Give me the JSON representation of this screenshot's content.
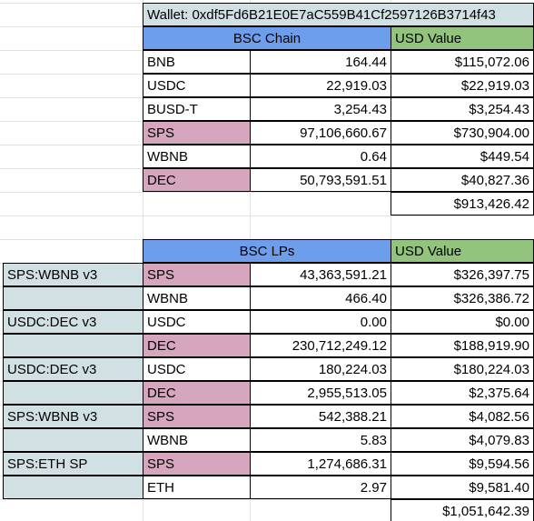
{
  "wallet_label": "Wallet: 0xdf5Fd6B21E0E7aC559B41Cf2597126B3714f43",
  "bsc_chain": {
    "header": "BSC Chain",
    "value_header": "USD Value",
    "rows": [
      {
        "token": "BNB",
        "amount": "164.44",
        "usd": "$115,072.06"
      },
      {
        "token": "USDC",
        "amount": "22,919.03",
        "usd": "$22,919.03"
      },
      {
        "token": "BUSD-T",
        "amount": "3,254.43",
        "usd": "$3,254.43"
      },
      {
        "token": "SPS",
        "amount": "97,106,660.67",
        "usd": "$730,904.00",
        "highlight": true
      },
      {
        "token": "WBNB",
        "amount": "0.64",
        "usd": "$449.54"
      },
      {
        "token": "DEC",
        "amount": "50,793,591.51",
        "usd": "$40,827.36",
        "highlight": true
      }
    ],
    "total": "$913,426.42"
  },
  "bsc_lps": {
    "header": "BSC LPs",
    "value_header": "USD Value",
    "rows": [
      {
        "pool": "SPS:WBNB v3",
        "token": "SPS",
        "amount": "43,363,591.21",
        "usd": "$326,397.75",
        "highlight": true
      },
      {
        "pool": "",
        "token": "WBNB",
        "amount": "466.40",
        "usd": "$326,386.72"
      },
      {
        "pool": "USDC:DEC v3",
        "token": "USDC",
        "amount": "0.00",
        "usd": "$0.00"
      },
      {
        "pool": "",
        "token": "DEC",
        "amount": "230,712,249.12",
        "usd": "$188,919.90",
        "highlight": true
      },
      {
        "pool": "USDC:DEC v3",
        "token": "USDC",
        "amount": "180,224.03",
        "usd": "$180,224.03"
      },
      {
        "pool": "",
        "token": "DEC",
        "amount": "2,955,513.05",
        "usd": "$2,375.64",
        "highlight": true
      },
      {
        "pool": "SPS:WBNB v3",
        "token": "SPS",
        "amount": "542,388.21",
        "usd": "$4,082.56",
        "highlight": true
      },
      {
        "pool": "",
        "token": "WBNB",
        "amount": "5.83",
        "usd": "$4,079.83"
      },
      {
        "pool": "SPS:ETH SP",
        "token": "SPS",
        "amount": "1,274,686.31",
        "usd": "$9,594.56",
        "highlight": true
      },
      {
        "pool": "",
        "token": "ETH",
        "amount": "2.97",
        "usd": "$9,581.40"
      }
    ],
    "total": "$1,051,642.39"
  }
}
